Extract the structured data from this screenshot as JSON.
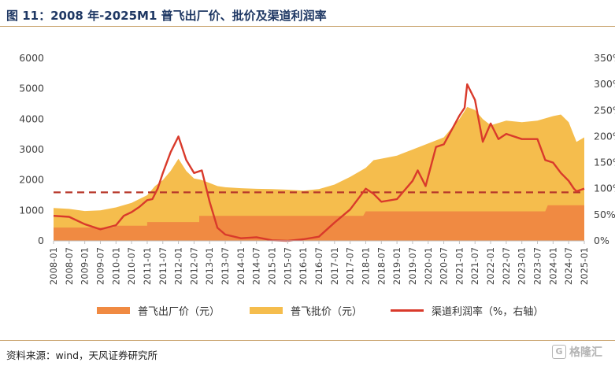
{
  "title": "图 11：2008 年-2025M1 普飞出厂价、批价及渠道利润率",
  "source": "资料来源：wind，天风证券研究所",
  "watermark": "格隆汇",
  "colors": {
    "factory": "#f08a42",
    "wholesale": "#f5bd4d",
    "margin": "#d93a2b",
    "reference": "#b7372a",
    "axis": "#bfbfbf",
    "title": "#1f3864"
  },
  "chart_data": {
    "type": "area",
    "x_ticks": [
      "2008-01",
      "2008-07",
      "2009-01",
      "2009-07",
      "2010-01",
      "2010-07",
      "2011-01",
      "2011-07",
      "2012-01",
      "2012-07",
      "2013-01",
      "2013-07",
      "2014-01",
      "2014-07",
      "2015-01",
      "2015-07",
      "2016-01",
      "2016-07",
      "2017-01",
      "2017-07",
      "2018-01",
      "2018-07",
      "2019-01",
      "2019-07",
      "2020-01",
      "2020-07",
      "2021-01",
      "2021-07",
      "2022-01",
      "2022-07",
      "2023-01",
      "2023-07",
      "2024-01",
      "2024-07",
      "2025-01"
    ],
    "x_range": [
      "2008-01",
      "2025-01"
    ],
    "left_axis": {
      "ticks": [
        "0",
        "1000",
        "2000",
        "3000",
        "4000",
        "5000",
        "6000"
      ],
      "ylim": [
        0,
        6000
      ]
    },
    "right_axis": {
      "ticks": [
        "0%",
        "50%",
        "100%",
        "150%",
        "200%",
        "250%",
        "300%",
        "350%"
      ],
      "ylim": [
        0,
        350
      ]
    },
    "series": [
      {
        "name": "普飞出厂价（元）",
        "type": "area",
        "axis": "left",
        "points": [
          [
            "2008-01",
            438
          ],
          [
            "2008-01",
            438
          ],
          [
            "2009-12",
            438
          ],
          [
            "2010-01",
            499
          ],
          [
            "2011-01",
            499
          ],
          [
            "2011-01",
            619
          ],
          [
            "2012-09",
            619
          ],
          [
            "2012-09",
            819
          ],
          [
            "2017-12",
            819
          ],
          [
            "2018-01",
            969
          ],
          [
            "2023-10",
            969
          ],
          [
            "2023-11",
            1169
          ],
          [
            "2025-01",
            1169
          ]
        ]
      },
      {
        "name": "普飞批价（元）",
        "type": "area",
        "axis": "left",
        "points": [
          [
            "2008-01",
            1080
          ],
          [
            "2008-07",
            1050
          ],
          [
            "2009-01",
            980
          ],
          [
            "2009-07",
            1000
          ],
          [
            "2010-01",
            1100
          ],
          [
            "2010-07",
            1250
          ],
          [
            "2011-01",
            1500
          ],
          [
            "2011-04",
            1800
          ],
          [
            "2011-07",
            2000
          ],
          [
            "2011-10",
            2300
          ],
          [
            "2012-01",
            2700
          ],
          [
            "2012-04",
            2300
          ],
          [
            "2012-07",
            2050
          ],
          [
            "2012-10",
            2000
          ],
          [
            "2013-01",
            1900
          ],
          [
            "2013-04",
            1800
          ],
          [
            "2013-07",
            1760
          ],
          [
            "2014-01",
            1730
          ],
          [
            "2014-07",
            1710
          ],
          [
            "2015-01",
            1700
          ],
          [
            "2015-07",
            1680
          ],
          [
            "2016-01",
            1650
          ],
          [
            "2016-07",
            1700
          ],
          [
            "2017-01",
            1850
          ],
          [
            "2017-07",
            2100
          ],
          [
            "2018-01",
            2400
          ],
          [
            "2018-04",
            2650
          ],
          [
            "2018-07",
            2700
          ],
          [
            "2019-01",
            2800
          ],
          [
            "2019-07",
            3000
          ],
          [
            "2020-01",
            3200
          ],
          [
            "2020-07",
            3400
          ],
          [
            "2021-01",
            4000
          ],
          [
            "2021-04",
            4400
          ],
          [
            "2021-07",
            4300
          ],
          [
            "2021-10",
            4000
          ],
          [
            "2022-01",
            3800
          ],
          [
            "2022-07",
            3950
          ],
          [
            "2023-01",
            3900
          ],
          [
            "2023-07",
            3950
          ],
          [
            "2024-01",
            4100
          ],
          [
            "2024-04",
            4150
          ],
          [
            "2024-07",
            3900
          ],
          [
            "2024-10",
            3250
          ],
          [
            "2025-01",
            3400
          ]
        ]
      },
      {
        "name": "渠道利润率（%，右轴）",
        "type": "line",
        "axis": "right",
        "points": [
          [
            "2008-01",
            48
          ],
          [
            "2008-07",
            46
          ],
          [
            "2009-01",
            32
          ],
          [
            "2009-07",
            22
          ],
          [
            "2010-01",
            30
          ],
          [
            "2010-04",
            48
          ],
          [
            "2010-07",
            55
          ],
          [
            "2010-10",
            65
          ],
          [
            "2011-01",
            78
          ],
          [
            "2011-03",
            80
          ],
          [
            "2011-05",
            100
          ],
          [
            "2011-07",
            130
          ],
          [
            "2011-10",
            170
          ],
          [
            "2012-01",
            200
          ],
          [
            "2012-04",
            155
          ],
          [
            "2012-07",
            130
          ],
          [
            "2012-10",
            135
          ],
          [
            "2013-01",
            75
          ],
          [
            "2013-04",
            25
          ],
          [
            "2013-07",
            12
          ],
          [
            "2014-01",
            5
          ],
          [
            "2014-07",
            7
          ],
          [
            "2015-01",
            1
          ],
          [
            "2015-07",
            0
          ],
          [
            "2016-01",
            3
          ],
          [
            "2016-07",
            8
          ],
          [
            "2017-01",
            35
          ],
          [
            "2017-07",
            60
          ],
          [
            "2018-01",
            100
          ],
          [
            "2018-04",
            90
          ],
          [
            "2018-07",
            75
          ],
          [
            "2019-01",
            80
          ],
          [
            "2019-07",
            115
          ],
          [
            "2019-09",
            135
          ],
          [
            "2019-12",
            105
          ],
          [
            "2020-04",
            180
          ],
          [
            "2020-07",
            185
          ],
          [
            "2021-01",
            240
          ],
          [
            "2021-03",
            255
          ],
          [
            "2021-04",
            300
          ],
          [
            "2021-07",
            270
          ],
          [
            "2021-10",
            190
          ],
          [
            "2022-01",
            225
          ],
          [
            "2022-04",
            195
          ],
          [
            "2022-07",
            205
          ],
          [
            "2023-01",
            195
          ],
          [
            "2023-07",
            195
          ],
          [
            "2023-10",
            155
          ],
          [
            "2024-01",
            150
          ],
          [
            "2024-04",
            130
          ],
          [
            "2024-07",
            115
          ],
          [
            "2024-09",
            100
          ],
          [
            "2024-10",
            95
          ],
          [
            "2025-01",
            100
          ]
        ]
      }
    ],
    "reference_line": {
      "axis": "right",
      "value": 93
    },
    "legend_position": "bottom",
    "grid": false
  }
}
